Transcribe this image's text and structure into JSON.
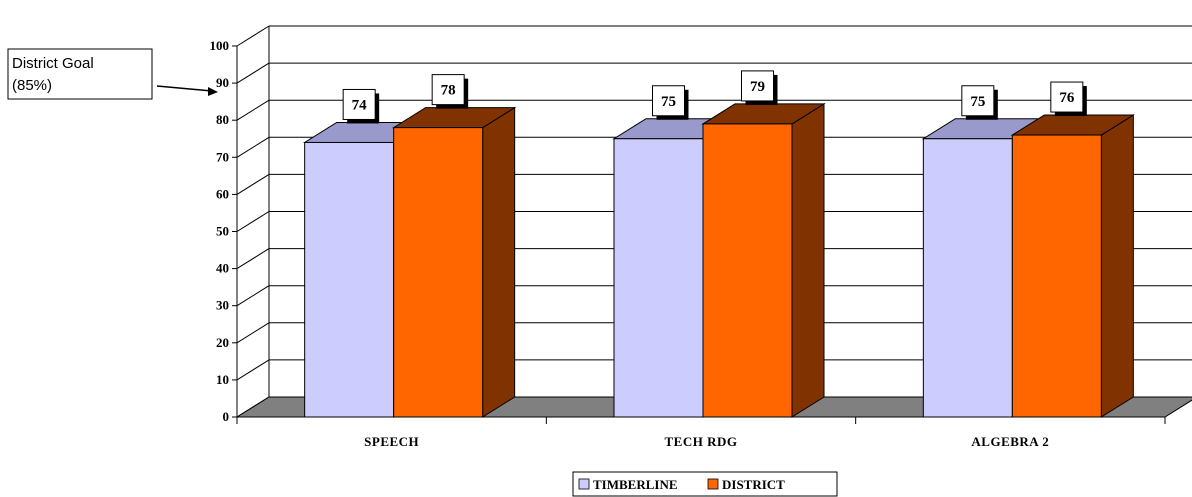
{
  "chart_data": {
    "type": "bar",
    "categories": [
      "SPEECH",
      "TECH RDG",
      "ALGEBRA 2"
    ],
    "series": [
      {
        "name": "TIMBERLINE",
        "values": [
          74,
          75,
          75
        ],
        "color": "#CCCCFF",
        "side_color": "#9999CC"
      },
      {
        "name": "DISTRICT",
        "values": [
          78,
          79,
          76
        ],
        "color": "#FF6600",
        "side_color": "#803300"
      }
    ],
    "ylim": [
      0,
      100
    ],
    "yticks": [
      0,
      10,
      20,
      30,
      40,
      50,
      60,
      70,
      80,
      90,
      100
    ],
    "grid": true,
    "legend_position": "bottom",
    "three_d": true,
    "floor_color": "#808080"
  },
  "annotation": {
    "line1": "District Goal",
    "line2": "(85%)"
  }
}
